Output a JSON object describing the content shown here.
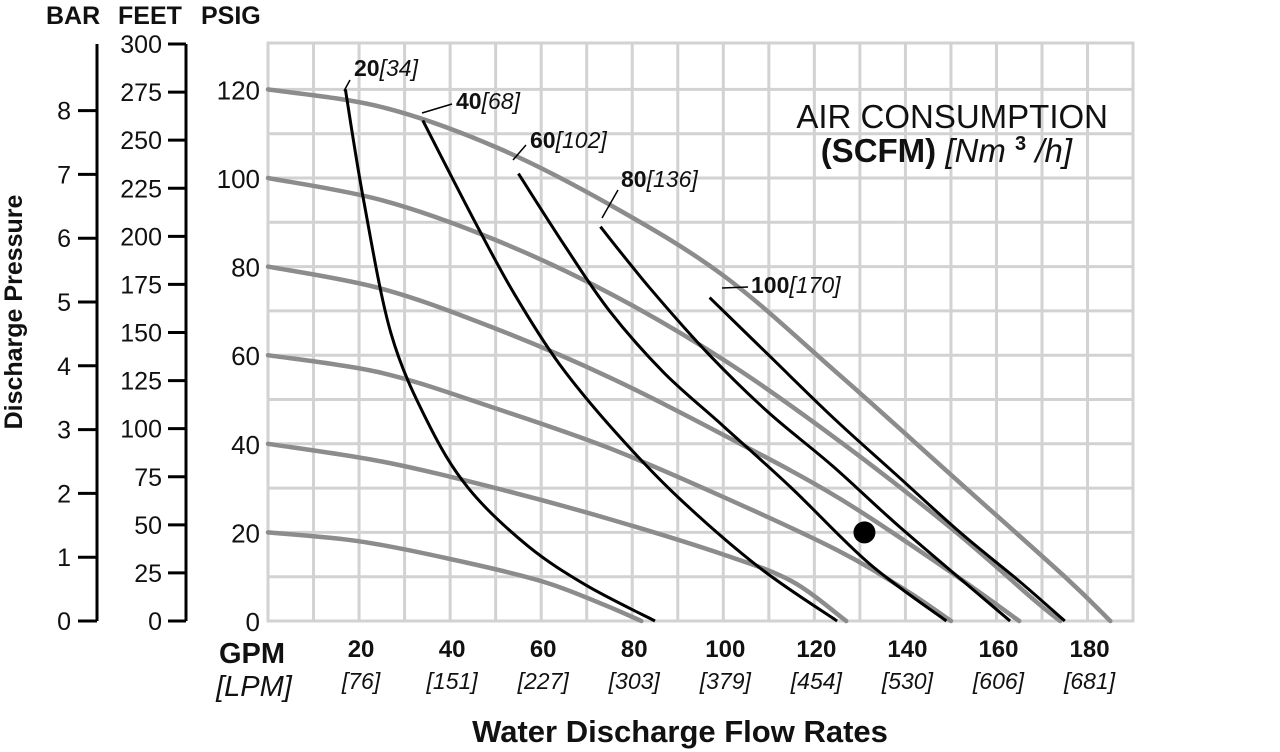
{
  "chart_data": {
    "type": "line",
    "axis_headers": {
      "bar": "BAR",
      "feet": "FEET",
      "psig": "PSIG"
    },
    "ylabel": "Discharge Pressure",
    "xlabel": "Water Discharge Flow Rates",
    "x_unit_top": "GPM",
    "x_unit_bottom": "[LPM]",
    "x_ticks": [
      {
        "gpm": "20",
        "lpm": "[76]"
      },
      {
        "gpm": "40",
        "lpm": "[151]"
      },
      {
        "gpm": "60",
        "lpm": "[227]"
      },
      {
        "gpm": "80",
        "lpm": "[303]"
      },
      {
        "gpm": "100",
        "lpm": "[379]"
      },
      {
        "gpm": "120",
        "lpm": "[454]"
      },
      {
        "gpm": "140",
        "lpm": "[530]"
      },
      {
        "gpm": "160",
        "lpm": "[606]"
      },
      {
        "gpm": "180",
        "lpm": "[681]"
      }
    ],
    "x_gpm_values": [
      20,
      40,
      60,
      80,
      100,
      120,
      140,
      160,
      180
    ],
    "psig_ticks": [
      "0",
      "20",
      "40",
      "60",
      "80",
      "100",
      "120"
    ],
    "psig_values": [
      0,
      20,
      40,
      60,
      80,
      100,
      120
    ],
    "feet_ticks": [
      "0",
      "25",
      "50",
      "75",
      "100",
      "125",
      "150",
      "175",
      "200",
      "225",
      "250",
      "275",
      "300"
    ],
    "feet_values": [
      0,
      25,
      50,
      75,
      100,
      125,
      150,
      175,
      200,
      225,
      250,
      275,
      300
    ],
    "bar_ticks": [
      "0",
      "1",
      "2",
      "3",
      "4",
      "5",
      "6",
      "7",
      "8"
    ],
    "bar_values": [
      0,
      1,
      2,
      3,
      4,
      5,
      6,
      7,
      8
    ],
    "xlim": [
      0,
      190
    ],
    "ylim": [
      0,
      125
    ],
    "grid": true,
    "legend": {
      "title_line1": "AIR CONSUMPTION",
      "title_line2_bold": "(SCFM)",
      "title_line2_italic": "[Nm",
      "title_sup": "3",
      "title_line2_end": "/h]"
    },
    "pressure_curves": [
      {
        "points": [
          [
            0,
            120
          ],
          [
            25,
            116
          ],
          [
            50,
            107
          ],
          [
            75,
            94
          ],
          [
            100,
            78
          ],
          [
            125,
            56
          ],
          [
            150,
            33
          ],
          [
            175,
            10
          ],
          [
            185,
            0
          ]
        ]
      },
      {
        "points": [
          [
            0,
            100
          ],
          [
            25,
            95
          ],
          [
            50,
            86
          ],
          [
            75,
            74
          ],
          [
            100,
            59
          ],
          [
            125,
            41
          ],
          [
            150,
            21
          ],
          [
            168,
            5
          ],
          [
            174,
            0
          ]
        ]
      },
      {
        "points": [
          [
            0,
            80
          ],
          [
            25,
            75
          ],
          [
            50,
            66
          ],
          [
            75,
            55
          ],
          [
            100,
            42
          ],
          [
            125,
            28
          ],
          [
            150,
            11
          ],
          [
            165,
            0
          ]
        ]
      },
      {
        "points": [
          [
            0,
            60
          ],
          [
            25,
            56
          ],
          [
            50,
            48
          ],
          [
            75,
            39
          ],
          [
            100,
            28
          ],
          [
            125,
            16
          ],
          [
            140,
            7
          ],
          [
            150,
            0
          ]
        ]
      },
      {
        "points": [
          [
            0,
            40
          ],
          [
            25,
            36
          ],
          [
            50,
            30
          ],
          [
            75,
            23
          ],
          [
            100,
            15
          ],
          [
            115,
            9
          ],
          [
            127,
            0
          ]
        ]
      },
      {
        "points": [
          [
            0,
            20
          ],
          [
            20,
            18
          ],
          [
            40,
            14
          ],
          [
            60,
            9
          ],
          [
            73,
            4
          ],
          [
            82,
            0
          ]
        ]
      }
    ],
    "air_curves": [
      {
        "label_bold": "20",
        "label_italic": "[34]",
        "points": [
          [
            17,
            120
          ],
          [
            21,
            95
          ],
          [
            27,
            65
          ],
          [
            35,
            45
          ],
          [
            44,
            30
          ],
          [
            57,
            17
          ],
          [
            70,
            8
          ],
          [
            85,
            0
          ]
        ]
      },
      {
        "label_bold": "40",
        "label_italic": "[68]",
        "points": [
          [
            34,
            113
          ],
          [
            45,
            91
          ],
          [
            54,
            74
          ],
          [
            64,
            58
          ],
          [
            76,
            43
          ],
          [
            90,
            28
          ],
          [
            108,
            12
          ],
          [
            125,
            0
          ]
        ]
      },
      {
        "label_bold": "60",
        "label_italic": "[102]",
        "points": [
          [
            55,
            101
          ],
          [
            65,
            85
          ],
          [
            75,
            70
          ],
          [
            87,
            56
          ],
          [
            100,
            44
          ],
          [
            115,
            30
          ],
          [
            132,
            13
          ],
          [
            149,
            0
          ]
        ]
      },
      {
        "label_bold": "80",
        "label_italic": "[136]",
        "points": [
          [
            73,
            89
          ],
          [
            84,
            75
          ],
          [
            97,
            60
          ],
          [
            110,
            47
          ],
          [
            124,
            35
          ],
          [
            139,
            21
          ],
          [
            163,
            0
          ]
        ]
      },
      {
        "label_bold": "100",
        "label_italic": "[170]",
        "points": [
          [
            97,
            73
          ],
          [
            110,
            60
          ],
          [
            124,
            46
          ],
          [
            138,
            33
          ],
          [
            152,
            20
          ],
          [
            165,
            9
          ],
          [
            175,
            0
          ]
        ]
      }
    ],
    "operating_point": {
      "x": 131,
      "y": 20
    }
  }
}
